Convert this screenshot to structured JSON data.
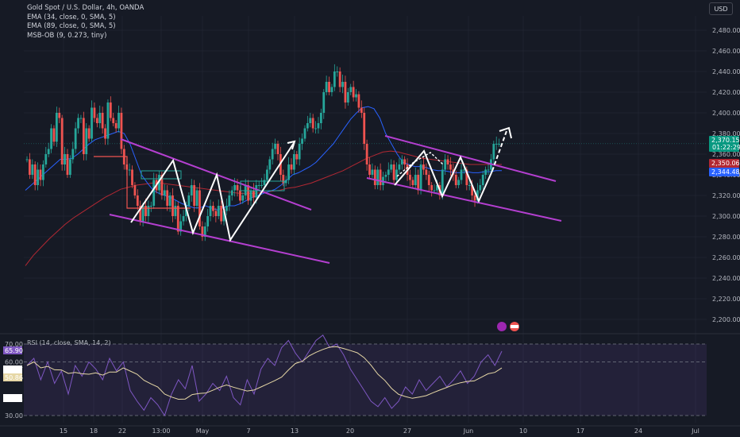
{
  "header": {
    "title": "Gold Spot / U.S. Dollar, 4h, OANDA",
    "indicators": [
      "EMA (34, close, 0, SMA, 5)",
      "EMA (89, close, 0, SMA, 5)",
      "MSB-OB (9, 0.273, tiny)"
    ],
    "currency": "USD"
  },
  "rsi_legend": "RSI (14, close, SMA, 14, 2)",
  "colors": {
    "background": "#161a25",
    "price": "#26a69a",
    "down": "#ef5350",
    "ema34": "#2962ff",
    "ema89": "#b22833",
    "channel": "#b43fd0",
    "rsi": "#7e57c2",
    "rsi_ma": "#e6d7a6",
    "arrow": "#ffffff"
  },
  "chart_data": {
    "type": "candlestick",
    "y_axis": {
      "ticks": [
        "2,480.000",
        "2,460.000",
        "2,440.000",
        "2,420.000",
        "2,400.000",
        "2,380.000",
        "2,360.000",
        "2,340.000",
        "2,320.000",
        "2,300.000",
        "2,280.000",
        "2,260.000",
        "2,240.000",
        "2,220.000",
        "2,200.000"
      ],
      "ylim": [
        2190,
        2495
      ]
    },
    "x_axis": {
      "ticks": [
        "15",
        "18",
        "22",
        "13:00",
        "May",
        "7",
        "13",
        "20",
        "27",
        "Jun",
        "10",
        "17",
        "24",
        "Jul"
      ]
    },
    "price_badges": [
      {
        "value": 2370.15,
        "label": "2,370.150",
        "sub": "01:22:29",
        "color": "#089981"
      },
      {
        "value": 2350.062,
        "label": "2,350.062",
        "color": "#b22833"
      },
      {
        "value": 2344.483,
        "label": "2,344.483",
        "color": "#2962ff"
      }
    ],
    "close_path": [
      [
        2355,
        2340
      ],
      [
        2350,
        2330
      ],
      [
        2345,
        2335
      ],
      [
        2350,
        2360
      ],
      [
        2365,
        2385
      ],
      [
        2372,
        2400
      ],
      [
        2395,
        2350
      ],
      [
        2360,
        2340
      ],
      [
        2355,
        2365
      ],
      [
        2385,
        2395
      ],
      [
        2395,
        2360
      ],
      [
        2385,
        2375
      ],
      [
        2405,
        2395
      ],
      [
        2390,
        2400
      ],
      [
        2385,
        2375
      ],
      [
        2410,
        2395
      ],
      [
        2390,
        2385
      ],
      [
        2400,
        2365
      ],
      [
        2350,
        2345
      ],
      [
        2345,
        2330
      ],
      [
        2320,
        2310
      ],
      [
        2295,
        2310
      ],
      [
        2300,
        2310
      ],
      [
        2310,
        2335
      ],
      [
        2325,
        2340
      ],
      [
        2320,
        2325
      ],
      [
        2310,
        2320
      ],
      [
        2300,
        2310
      ],
      [
        2285,
        2295
      ],
      [
        2300,
        2310
      ],
      [
        2320,
        2330
      ],
      [
        2310,
        2325
      ],
      [
        2290,
        2280
      ],
      [
        2290,
        2300
      ],
      [
        2310,
        2305
      ],
      [
        2300,
        2310
      ],
      [
        2295,
        2305
      ],
      [
        2310,
        2320
      ],
      [
        2325,
        2330
      ],
      [
        2325,
        2315
      ],
      [
        2320,
        2330
      ],
      [
        2315,
        2325
      ],
      [
        2318,
        2330
      ],
      [
        2330,
        2330
      ],
      [
        2335,
        2345
      ],
      [
        2355,
        2365
      ],
      [
        2370,
        2360
      ],
      [
        2340,
        2332
      ],
      [
        2335,
        2350
      ],
      [
        2345,
        2360
      ],
      [
        2355,
        2370
      ],
      [
        2375,
        2385
      ],
      [
        2390,
        2395
      ],
      [
        2385,
        2385
      ],
      [
        2390,
        2400
      ],
      [
        2420,
        2430
      ],
      [
        2420,
        2425
      ],
      [
        2440,
        2440
      ],
      [
        2425,
        2430
      ],
      [
        2410,
        2420
      ],
      [
        2425,
        2415
      ],
      [
        2418,
        2405
      ],
      [
        2400,
        2370
      ],
      [
        2350,
        2340
      ],
      [
        2345,
        2330
      ],
      [
        2345,
        2330
      ],
      [
        2338,
        2340
      ],
      [
        2345,
        2350
      ],
      [
        2335,
        2345
      ],
      [
        2350,
        2355
      ],
      [
        2350,
        2340
      ],
      [
        2335,
        2330
      ],
      [
        2340,
        2325
      ],
      [
        2350,
        2345
      ],
      [
        2340,
        2330
      ],
      [
        2325,
        2325
      ],
      [
        2330,
        2320
      ],
      [
        2345,
        2355
      ],
      [
        2350,
        2345
      ],
      [
        2340,
        2330
      ],
      [
        2335,
        2345
      ],
      [
        2345,
        2330
      ],
      [
        2330,
        2320
      ],
      [
        2315,
        2325
      ],
      [
        2330,
        2340
      ],
      [
        2345,
        2345
      ],
      [
        2355,
        2370
      ],
      [
        2370,
        2370
      ]
    ],
    "ema34": [
      2325,
      2330,
      2335,
      2340,
      2345,
      2350,
      2355,
      2355,
      2356,
      2360,
      2365,
      2370,
      2374,
      2376,
      2378,
      2380,
      2382,
      2380,
      2370,
      2355,
      2340,
      2332,
      2325,
      2322,
      2320,
      2318,
      2315,
      2312,
      2310,
      2308,
      2308,
      2310,
      2308,
      2306,
      2308,
      2310,
      2310,
      2312,
      2315,
      2318,
      2320,
      2322,
      2324,
      2326,
      2330,
      2335,
      2340,
      2342,
      2345,
      2348,
      2352,
      2358,
      2364,
      2370,
      2378,
      2386,
      2394,
      2400,
      2405,
      2406,
      2404,
      2395,
      2380,
      2370,
      2360,
      2352,
      2350,
      2348,
      2348,
      2347,
      2345,
      2344,
      2344,
      2343,
      2342,
      2342,
      2343,
      2342,
      2342,
      2343,
      2343,
      2344,
      2344
    ],
    "ema89": [
      2252,
      2262,
      2270,
      2278,
      2285,
      2292,
      2298,
      2303,
      2308,
      2313,
      2318,
      2322,
      2326,
      2328,
      2330,
      2331,
      2332,
      2332,
      2331,
      2330,
      2329,
      2328,
      2327,
      2326,
      2325,
      2324,
      2323,
      2322,
      2322,
      2322,
      2323,
      2324,
      2325,
      2327,
      2328,
      2330,
      2332,
      2335,
      2338,
      2341,
      2344,
      2348,
      2352,
      2356,
      2359,
      2362,
      2363,
      2362,
      2360,
      2358,
      2356,
      2355,
      2354,
      2353,
      2352,
      2351,
      2350,
      2350,
      2350,
      2350,
      2350
    ],
    "rsi": {
      "levels": [
        "70.00",
        "60.00",
        "30.00"
      ],
      "badges": [
        {
          "label": "65.90",
          "color": "#7e57c2"
        },
        {
          "label": "55.37",
          "color": "#ffffff"
        },
        {
          "label": "50.86",
          "color": "#e6d7a6"
        },
        {
          "label": "39.31",
          "color": "#ffffff"
        }
      ]
    }
  }
}
